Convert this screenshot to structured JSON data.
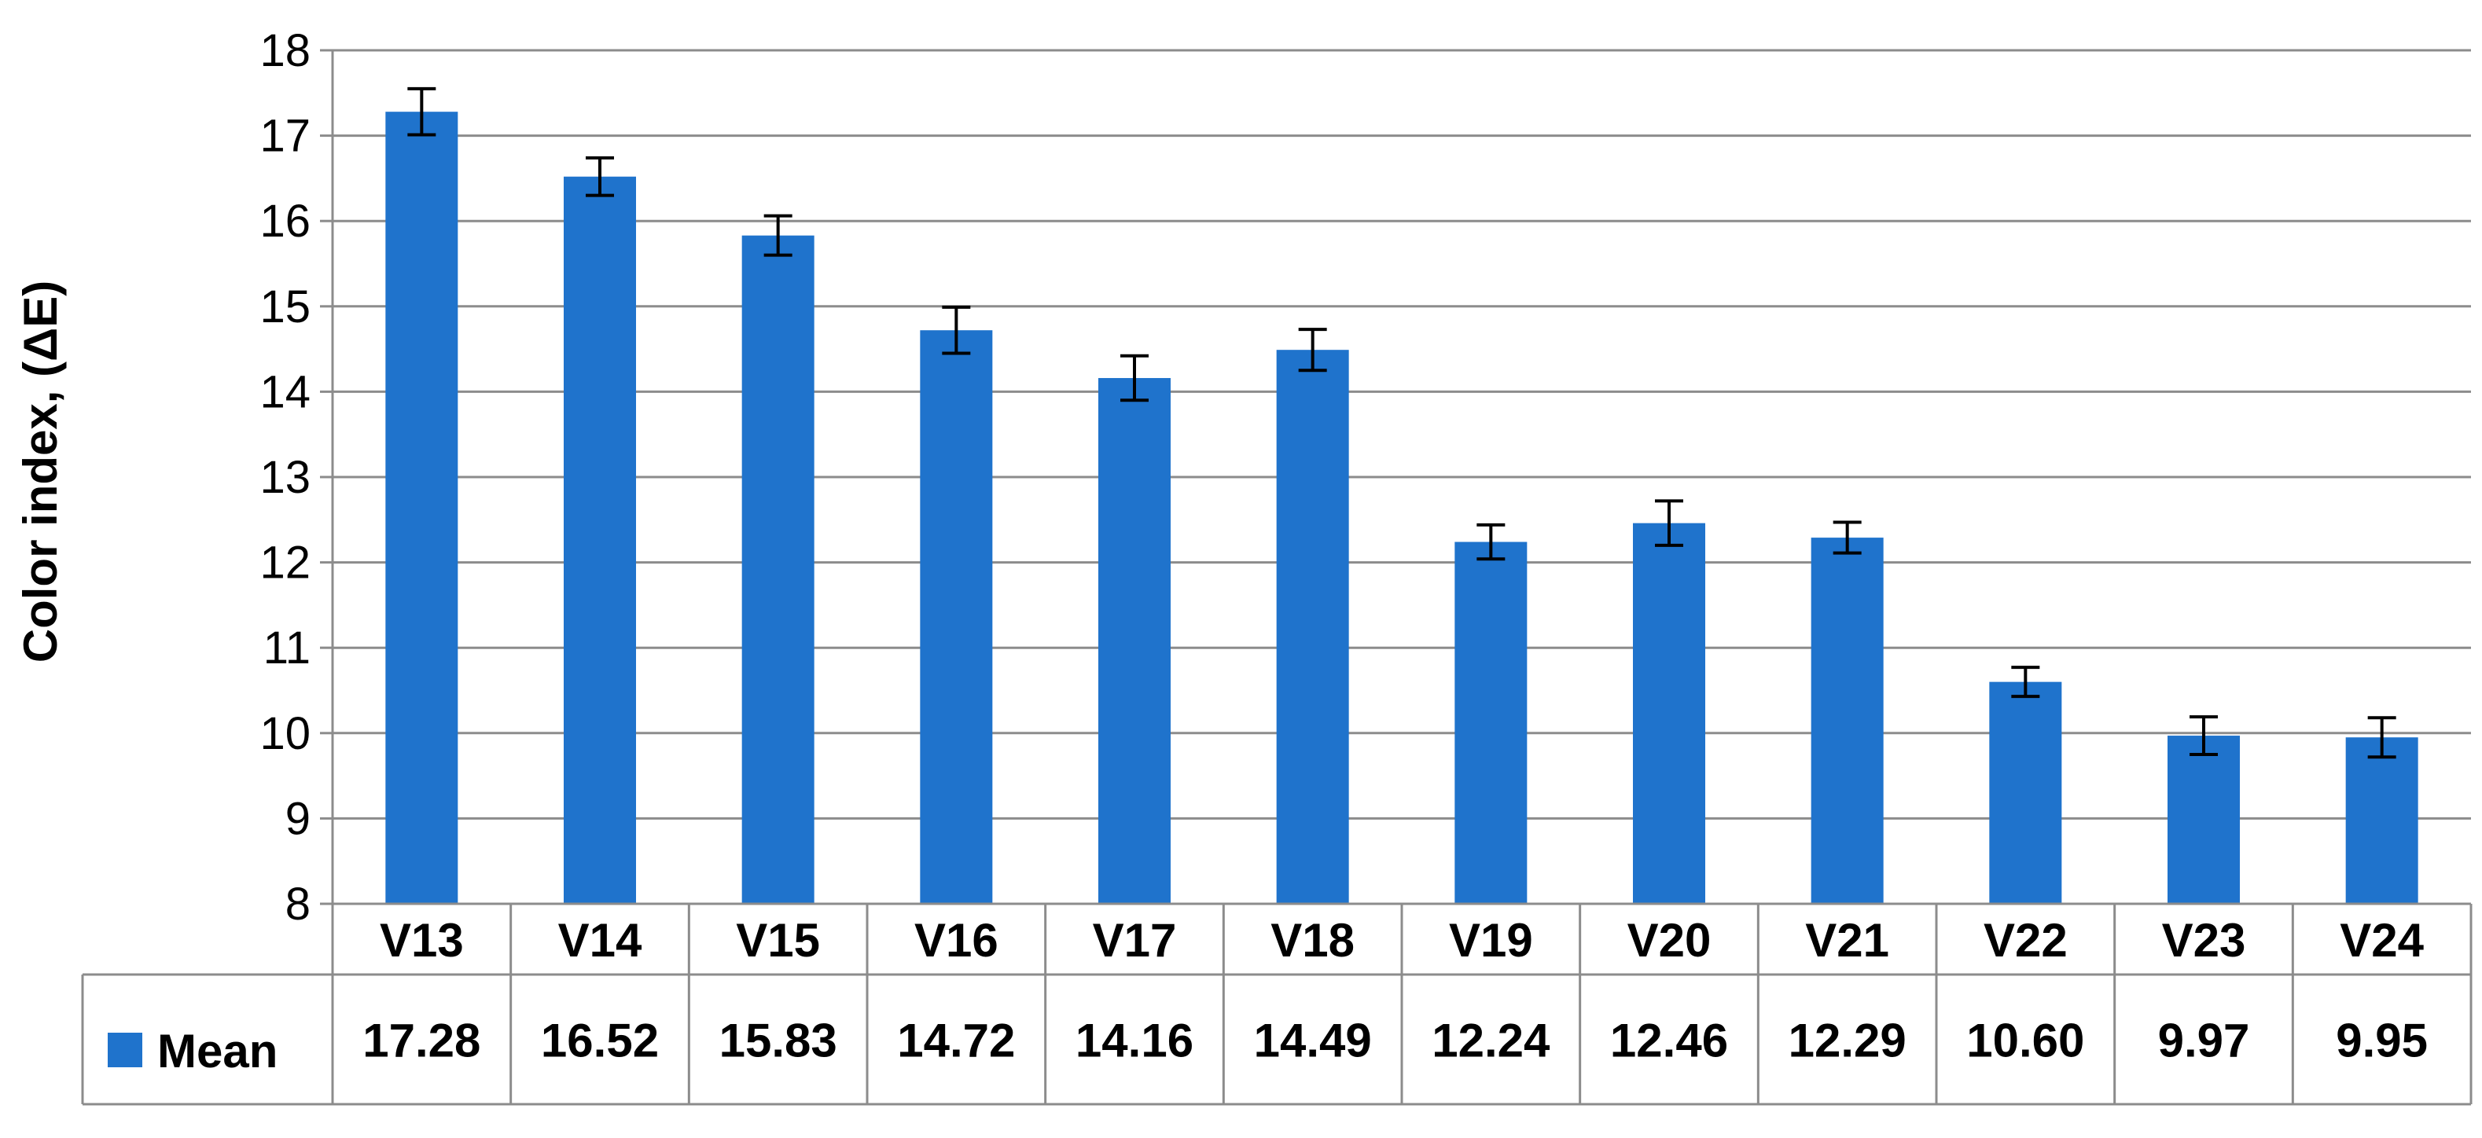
{
  "chart_data": {
    "type": "bar",
    "title": "",
    "xlabel": "",
    "ylabel": "Color index, (ΔE)",
    "ylim": [
      8,
      18
    ],
    "yticks": [
      8,
      9,
      10,
      11,
      12,
      13,
      14,
      15,
      16,
      17,
      18
    ],
    "grid": true,
    "legend": "data-table-left",
    "categories": [
      "V13",
      "V14",
      "V15",
      "V16",
      "V17",
      "V18",
      "V19",
      "V20",
      "V21",
      "V22",
      "V23",
      "V24"
    ],
    "series": [
      {
        "name": "Mean",
        "color": "#1f73cc",
        "values": [
          17.28,
          16.52,
          15.83,
          14.72,
          14.16,
          14.49,
          12.24,
          12.46,
          12.29,
          10.6,
          9.97,
          9.95
        ],
        "value_labels": [
          "17.28",
          "16.52",
          "15.83",
          "14.72",
          "14.16",
          "14.49",
          "12.24",
          "12.46",
          "12.29",
          "10.60",
          "9.97",
          "9.95"
        ],
        "error": [
          0.27,
          0.22,
          0.23,
          0.27,
          0.26,
          0.24,
          0.2,
          0.26,
          0.18,
          0.17,
          0.22,
          0.23
        ]
      }
    ]
  }
}
